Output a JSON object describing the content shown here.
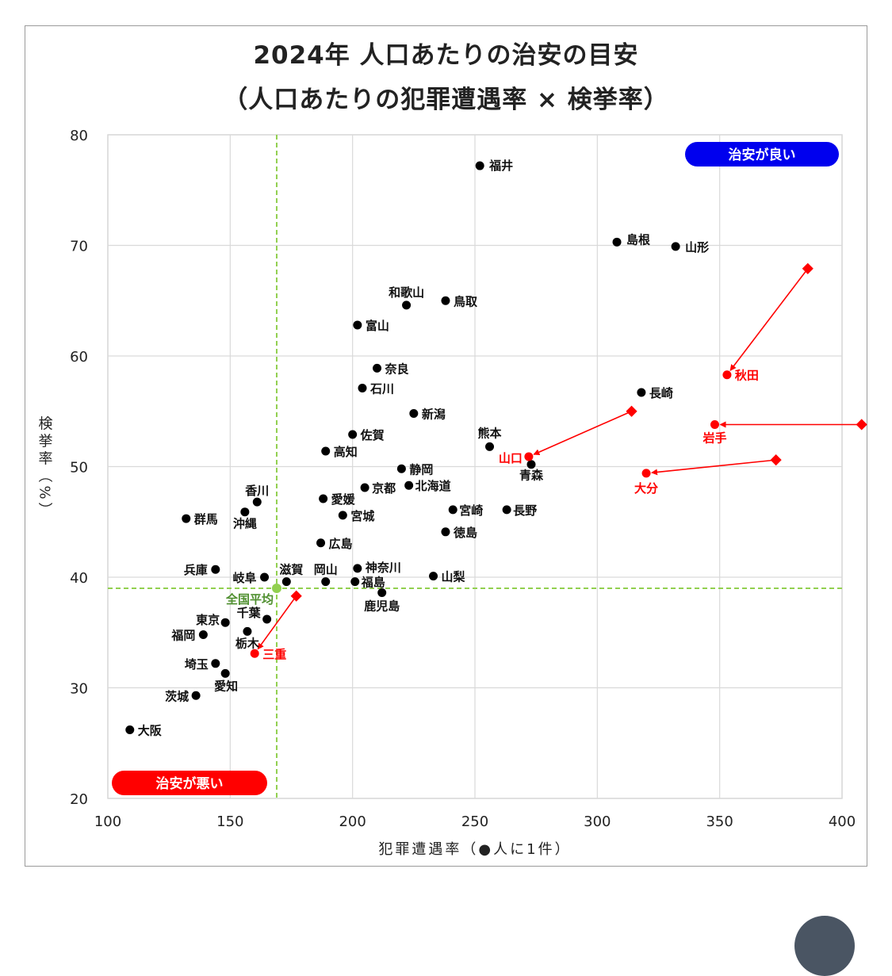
{
  "title_line1": "2024年 人口あたりの治安の目安",
  "title_line2": "（人口あたりの犯罪遭遇率 × 検挙率）",
  "colors": {
    "point": "#000000",
    "highlight": "#ff0000",
    "average": "#92d050",
    "good_badge": "#0000ee",
    "bad_badge": "#ff0000",
    "grid": "#d9d9d9"
  },
  "badges": {
    "good": "治安が良い",
    "bad": "治安が悪い"
  },
  "chart_data": {
    "type": "scatter",
    "xlabel": "犯罪遭遇率（●人に1件）",
    "ylabel": "検挙率（%）",
    "xlim": [
      100,
      400
    ],
    "ylim": [
      20,
      80
    ],
    "xticks": [
      100,
      150,
      200,
      250,
      300,
      350,
      400
    ],
    "yticks": [
      20,
      30,
      40,
      50,
      60,
      70,
      80
    ],
    "grid": true,
    "average": {
      "name": "全国平均",
      "x": 169,
      "y": 39
    },
    "points": [
      {
        "name": "福井",
        "x": 252,
        "y": 77.2
      },
      {
        "name": "島根",
        "x": 308,
        "y": 70.3
      },
      {
        "name": "山形",
        "x": 332,
        "y": 69.9
      },
      {
        "name": "和歌山",
        "x": 222,
        "y": 64.6
      },
      {
        "name": "鳥取",
        "x": 238,
        "y": 65.0
      },
      {
        "name": "富山",
        "x": 202,
        "y": 62.8
      },
      {
        "name": "奈良",
        "x": 210,
        "y": 58.9
      },
      {
        "name": "石川",
        "x": 204,
        "y": 57.1
      },
      {
        "name": "長崎",
        "x": 318,
        "y": 56.7
      },
      {
        "name": "新潟",
        "x": 225,
        "y": 54.8
      },
      {
        "name": "佐賀",
        "x": 200,
        "y": 52.9
      },
      {
        "name": "熊本",
        "x": 256,
        "y": 51.8
      },
      {
        "name": "高知",
        "x": 189,
        "y": 51.4
      },
      {
        "name": "青森",
        "x": 273,
        "y": 50.2
      },
      {
        "name": "静岡",
        "x": 220,
        "y": 49.8
      },
      {
        "name": "京都",
        "x": 205,
        "y": 48.1
      },
      {
        "name": "北海道",
        "x": 223,
        "y": 48.3
      },
      {
        "name": "香川",
        "x": 161,
        "y": 46.8
      },
      {
        "name": "愛媛",
        "x": 188,
        "y": 47.1
      },
      {
        "name": "沖縄",
        "x": 156,
        "y": 45.9
      },
      {
        "name": "宮崎",
        "x": 241,
        "y": 46.1
      },
      {
        "name": "長野",
        "x": 263,
        "y": 46.1
      },
      {
        "name": "群馬",
        "x": 132,
        "y": 45.3
      },
      {
        "name": "宮城",
        "x": 196,
        "y": 45.6
      },
      {
        "name": "徳島",
        "x": 238,
        "y": 44.1
      },
      {
        "name": "広島",
        "x": 187,
        "y": 43.1
      },
      {
        "name": "兵庫",
        "x": 144,
        "y": 40.7
      },
      {
        "name": "神奈川",
        "x": 202,
        "y": 40.8
      },
      {
        "name": "山梨",
        "x": 233,
        "y": 40.1
      },
      {
        "name": "岐阜",
        "x": 164,
        "y": 40.0
      },
      {
        "name": "滋賀",
        "x": 173,
        "y": 39.6
      },
      {
        "name": "岡山",
        "x": 189,
        "y": 39.6
      },
      {
        "name": "福島",
        "x": 201,
        "y": 39.6
      },
      {
        "name": "鹿児島",
        "x": 212,
        "y": 38.6
      },
      {
        "name": "千葉",
        "x": 165,
        "y": 36.2
      },
      {
        "name": "東京",
        "x": 148,
        "y": 35.9
      },
      {
        "name": "栃木",
        "x": 157,
        "y": 35.1
      },
      {
        "name": "福岡",
        "x": 139,
        "y": 34.8
      },
      {
        "name": "埼玉",
        "x": 144,
        "y": 32.2
      },
      {
        "name": "愛知",
        "x": 148,
        "y": 31.3
      },
      {
        "name": "茨城",
        "x": 136,
        "y": 29.3
      },
      {
        "name": "大阪",
        "x": 109,
        "y": 26.2
      }
    ],
    "highlighted": [
      {
        "name": "秋田",
        "x": 353,
        "y": 58.3,
        "from_x": 386,
        "from_y": 67.9
      },
      {
        "name": "岩手",
        "x": 348,
        "y": 53.8,
        "from_x": 408,
        "from_y": 53.8
      },
      {
        "name": "山口",
        "x": 272,
        "y": 50.9,
        "from_x": 314,
        "from_y": 55.0
      },
      {
        "name": "大分",
        "x": 320,
        "y": 49.4,
        "from_x": 373,
        "from_y": 50.6
      },
      {
        "name": "三重",
        "x": 160,
        "y": 33.1,
        "from_x": 177,
        "from_y": 38.3
      }
    ]
  }
}
